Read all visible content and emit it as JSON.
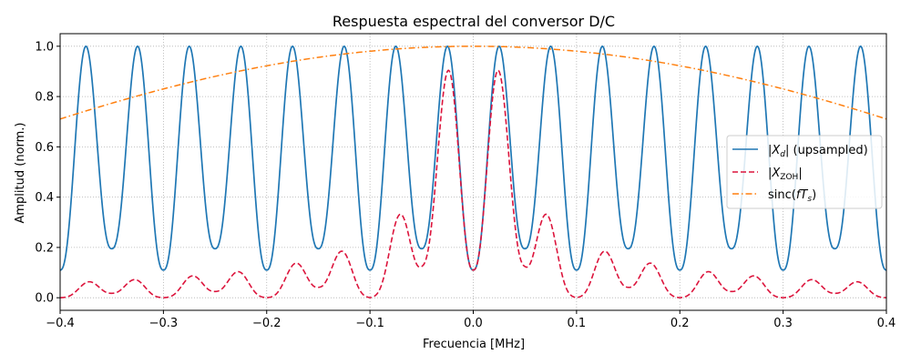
{
  "chart_data": {
    "type": "line",
    "title": "Respuesta espectral del conversor D/C",
    "xlabel": "Frecuencia [MHz]",
    "ylabel": "Amplitud (norm.)",
    "xlim": [
      -0.4,
      0.4
    ],
    "ylim": [
      -0.05,
      1.05
    ],
    "grid": true,
    "legend_position": "center-right",
    "x_ticks": [
      -0.4,
      -0.3,
      -0.2,
      -0.1,
      0.0,
      0.1,
      0.2,
      0.3,
      0.4
    ],
    "x_tick_labels": [
      "−0.4",
      "−0.3",
      "−0.2",
      "−0.1",
      "0.0",
      "0.1",
      "0.2",
      "0.3",
      "0.4"
    ],
    "y_ticks": [
      0.0,
      0.2,
      0.4,
      0.6,
      0.8,
      1.0
    ],
    "y_tick_labels": [
      "0.0",
      "0.2",
      "0.4",
      "0.6",
      "0.8",
      "1.0"
    ],
    "series": [
      {
        "name": "|Xd| (upsampled)",
        "legend_label": "|X_d| (upsampled)",
        "color": "#1f77b4",
        "style": "solid",
        "model": "|X_d(f)| = |sin(πfT·L)/(L·sin(πfT))| spectral envelope, periodic with lobes at ±0.025, ±0.075, …",
        "peak_frequencies": [
          -0.375,
          -0.325,
          -0.275,
          -0.225,
          -0.175,
          -0.125,
          -0.075,
          -0.025,
          0.025,
          0.075,
          0.125,
          0.175,
          0.225,
          0.275,
          0.325,
          0.375
        ],
        "peak_values": [
          1.0,
          1.0,
          1.0,
          1.0,
          1.0,
          1.0,
          1.0,
          1.0,
          1.0,
          1.0,
          1.0,
          1.0,
          1.0,
          1.0,
          1.0,
          1.0
        ],
        "minima_frequencies": [
          -0.4,
          -0.35,
          -0.3,
          -0.25,
          -0.2,
          -0.15,
          -0.1,
          -0.05,
          0.0,
          0.05,
          0.1,
          0.15,
          0.2,
          0.25,
          0.3,
          0.35,
          0.4
        ],
        "minima_values": [
          0.11,
          0.195,
          0.11,
          0.195,
          0.11,
          0.195,
          0.11,
          0.195,
          0.11,
          0.195,
          0.11,
          0.195,
          0.11,
          0.195,
          0.11,
          0.195,
          0.11
        ]
      },
      {
        "name": "|XZOH|",
        "legend_label": "|X_ZOH|",
        "color": "#dc143c",
        "style": "dashed",
        "model": "|X_d(f)| · |sinc(f·T_ZOH)| with sinc zeros at multiples of 0.1 MHz",
        "sinc_zero_spacing": 0.1
      },
      {
        "name": "sinc(fTs)",
        "legend_label": "sinc(fT_s)",
        "color": "#ff7f0e",
        "style": "dashdot",
        "model": "sinc(f·T_s)",
        "x": [
          -0.4,
          -0.3,
          -0.2,
          -0.1,
          0.0,
          0.1,
          0.2,
          0.3,
          0.4
        ],
        "values": [
          0.757,
          0.858,
          0.935,
          0.984,
          1.0,
          0.984,
          0.935,
          0.858,
          0.757
        ]
      }
    ]
  }
}
